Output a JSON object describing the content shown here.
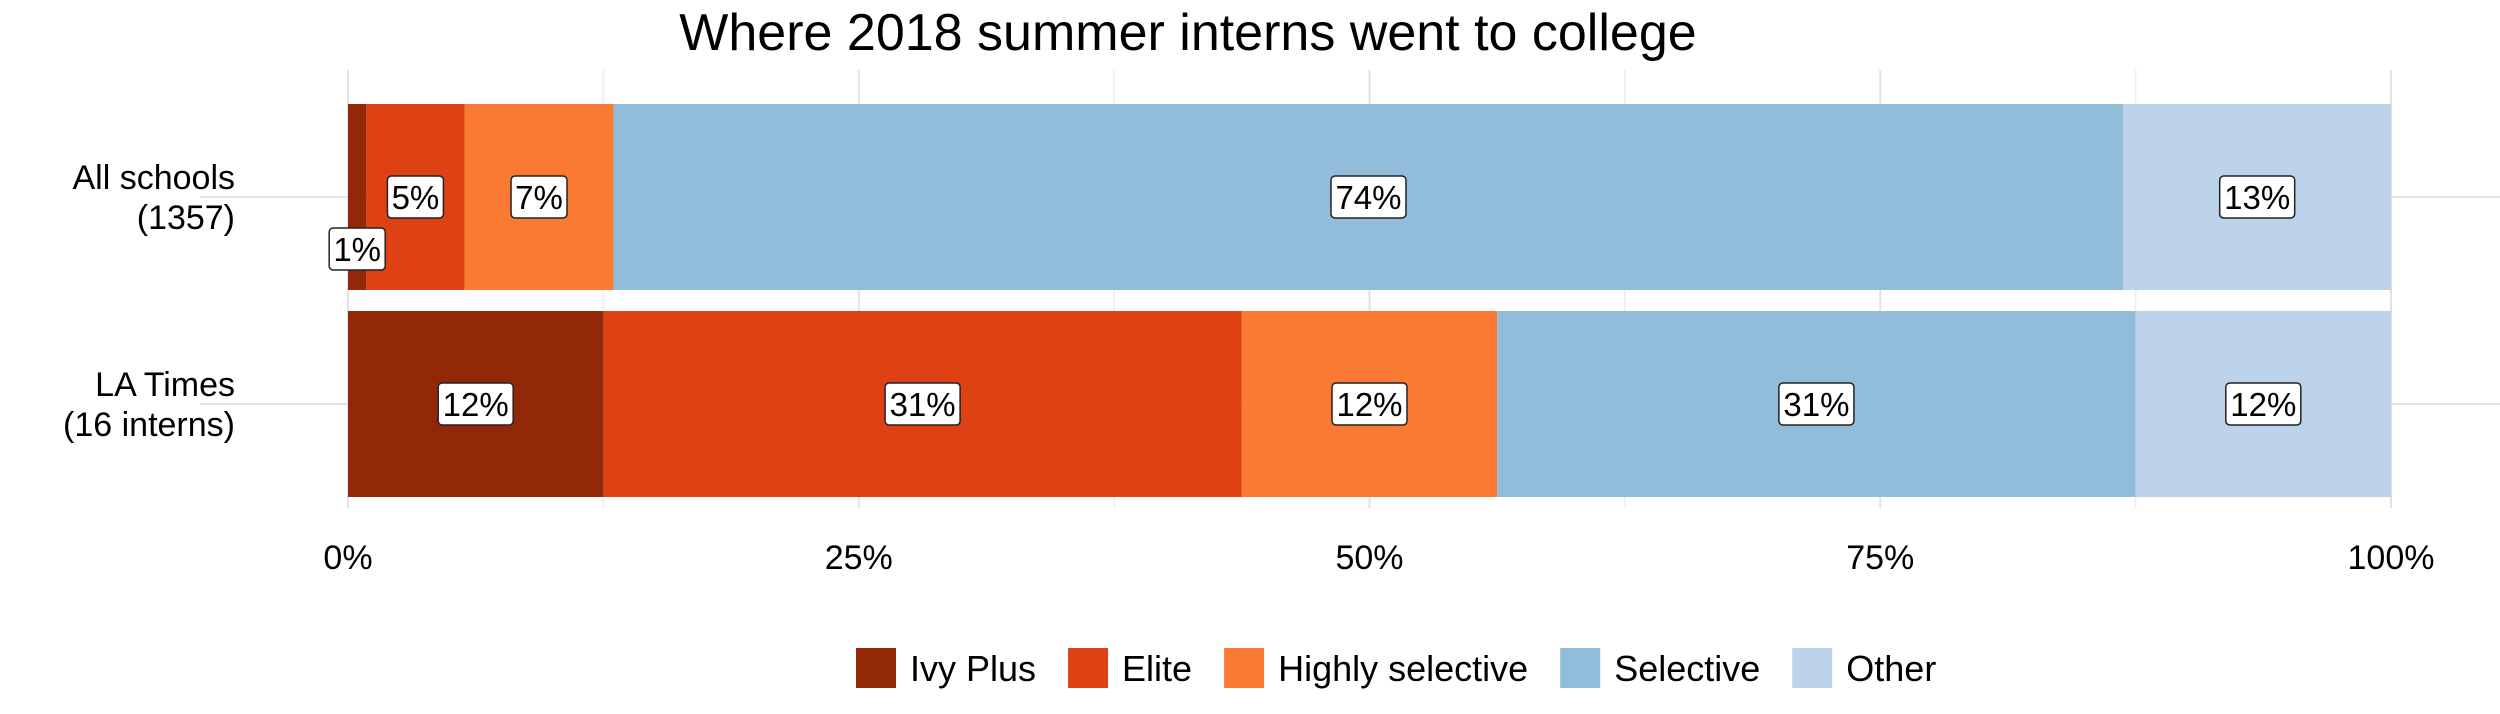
{
  "chart_data": {
    "type": "bar",
    "orientation": "horizontal",
    "stacked": true,
    "title": "Where 2018 summer interns went to college",
    "xlabel": "",
    "ylabel": "",
    "xlim": [
      0,
      100
    ],
    "x_ticks": [
      "0%",
      "25%",
      "50%",
      "75%",
      "100%"
    ],
    "grid": true,
    "legend_position": "bottom",
    "categories": [
      {
        "line1": "All schools",
        "line2": "(1357)"
      },
      {
        "line1": "LA Times",
        "line2": "(16 interns)"
      }
    ],
    "series": [
      {
        "name": "Ivy Plus",
        "color": "#922808",
        "values": [
          0.9,
          12.5
        ],
        "labels": [
          "1%",
          "12%"
        ]
      },
      {
        "name": "Elite",
        "color": "#DD4114",
        "values": [
          4.8,
          31.25
        ],
        "labels": [
          "5%",
          "31%"
        ]
      },
      {
        "name": "Highly selective",
        "color": "#FA7A33",
        "values": [
          7.3,
          12.5
        ],
        "labels": [
          "7%",
          "12%"
        ]
      },
      {
        "name": "Selective",
        "color": "#91BDDB",
        "values": [
          73.9,
          31.25
        ],
        "labels": [
          "74%",
          "31%"
        ]
      },
      {
        "name": "Other",
        "color": "#BDD3EC",
        "values": [
          13.1,
          12.5
        ],
        "labels": [
          "13%",
          "12%"
        ]
      }
    ]
  }
}
